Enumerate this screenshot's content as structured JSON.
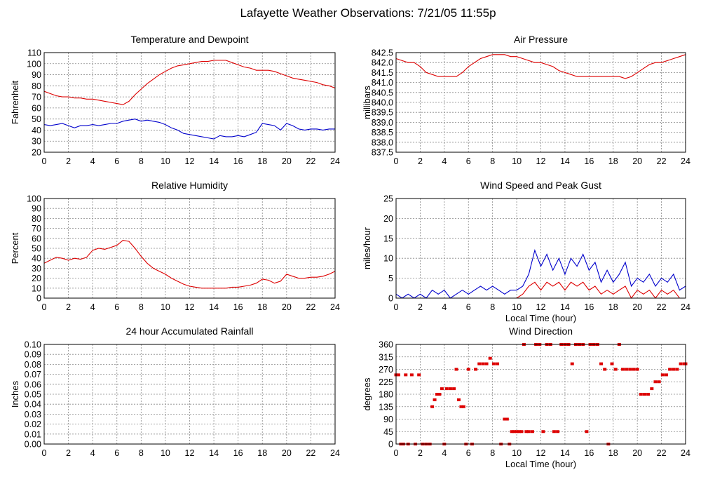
{
  "page_title": "Lafayette Weather Observations: 7/21/05 11:55p",
  "colors": {
    "red_series": "#dd0000",
    "blue_series": "#0000cc",
    "grid": "#888888",
    "frame": "#000000"
  },
  "chart_data": [
    {
      "id": "temp",
      "type": "line",
      "title": "Temperature and Dewpoint",
      "xlabel": "",
      "ylabel": "Fahrenheit",
      "xlim": [
        0,
        24
      ],
      "ylim": [
        20,
        110
      ],
      "xticks": [
        0,
        2,
        4,
        6,
        8,
        10,
        12,
        14,
        16,
        18,
        20,
        22,
        24
      ],
      "yticks": [
        20,
        30,
        40,
        50,
        60,
        70,
        80,
        90,
        100,
        110
      ],
      "grid": true,
      "series": [
        {
          "color": "#dd0000",
          "x": [
            0,
            0.5,
            1,
            1.5,
            2,
            2.5,
            3,
            3.5,
            4,
            4.5,
            5,
            5.5,
            6,
            6.5,
            7,
            7.5,
            8,
            8.5,
            9,
            9.5,
            10,
            10.5,
            11,
            11.5,
            12,
            12.5,
            13,
            13.5,
            14,
            14.5,
            15,
            15.5,
            16,
            16.5,
            17,
            17.5,
            18,
            18.5,
            19,
            19.5,
            20,
            20.5,
            21,
            21.5,
            22,
            22.5,
            23,
            23.5,
            24
          ],
          "y": [
            75,
            73,
            71,
            70,
            70,
            69,
            69,
            68,
            68,
            67,
            66,
            65,
            64,
            63,
            66,
            72,
            77,
            82,
            86,
            90,
            93,
            96,
            98,
            99,
            100,
            101,
            102,
            102,
            103,
            103,
            103,
            101,
            99,
            97,
            96,
            94,
            94,
            94,
            93,
            91,
            89,
            87,
            86,
            85,
            84,
            83,
            81,
            80,
            78
          ]
        },
        {
          "color": "#0000cc",
          "x": [
            0,
            0.5,
            1,
            1.5,
            2,
            2.5,
            3,
            3.5,
            4,
            4.5,
            5,
            5.5,
            6,
            6.5,
            7,
            7.5,
            8,
            8.5,
            9,
            9.5,
            10,
            10.5,
            11,
            11.5,
            12,
            12.5,
            13,
            13.5,
            14,
            14.5,
            15,
            15.5,
            16,
            16.5,
            17,
            17.5,
            18,
            18.5,
            19,
            19.5,
            20,
            20.5,
            21,
            21.5,
            22,
            22.5,
            23,
            23.5,
            24
          ],
          "y": [
            45,
            44,
            45,
            46,
            44,
            42,
            44,
            44,
            45,
            44,
            45,
            46,
            46,
            48,
            49,
            50,
            48,
            49,
            48,
            47,
            45,
            42,
            40,
            37,
            36,
            35,
            34,
            33,
            32,
            35,
            34,
            34,
            35,
            34,
            36,
            38,
            46,
            45,
            44,
            40,
            46,
            44,
            41,
            40,
            41,
            41,
            40,
            41,
            41
          ]
        }
      ]
    },
    {
      "id": "pressure",
      "type": "line",
      "title": "Air Pressure",
      "xlabel": "",
      "ylabel": "millibars",
      "xlim": [
        0,
        24
      ],
      "ylim": [
        837.5,
        842.5
      ],
      "xticks": [
        0,
        2,
        4,
        6,
        8,
        10,
        12,
        14,
        16,
        18,
        20,
        22,
        24
      ],
      "yticks": [
        "837.5",
        "838.0",
        "838.5",
        "839.0",
        "839.5",
        "840.0",
        "840.5",
        "841.0",
        "841.5",
        "842.0",
        "842.5"
      ],
      "grid": true,
      "series": [
        {
          "color": "#dd0000",
          "x": [
            0,
            0.5,
            1,
            1.5,
            2,
            2.5,
            3,
            3.5,
            4,
            4.5,
            5,
            5.5,
            6,
            6.5,
            7,
            7.5,
            8,
            8.5,
            9,
            9.5,
            10,
            10.5,
            11,
            11.5,
            12,
            12.5,
            13,
            13.5,
            14,
            14.5,
            15,
            15.5,
            16,
            16.5,
            17,
            17.5,
            18,
            18.5,
            19,
            19.5,
            20,
            20.5,
            21,
            21.5,
            22,
            22.5,
            23,
            23.5,
            24
          ],
          "y": [
            842.2,
            842.1,
            842.0,
            842.0,
            841.8,
            841.5,
            841.4,
            841.3,
            841.3,
            841.3,
            841.3,
            841.5,
            841.8,
            842.0,
            842.2,
            842.3,
            842.4,
            842.4,
            842.4,
            842.3,
            842.3,
            842.2,
            842.1,
            842.0,
            842.0,
            841.9,
            841.8,
            841.6,
            841.5,
            841.4,
            841.3,
            841.3,
            841.3,
            841.3,
            841.3,
            841.3,
            841.3,
            841.3,
            841.2,
            841.3,
            841.5,
            841.7,
            841.9,
            842.0,
            842.0,
            842.1,
            842.2,
            842.3,
            842.4
          ]
        }
      ]
    },
    {
      "id": "humidity",
      "type": "line",
      "title": "Relative Humidity",
      "xlabel": "",
      "ylabel": "Percent",
      "xlim": [
        0,
        24
      ],
      "ylim": [
        0,
        100
      ],
      "xticks": [
        0,
        2,
        4,
        6,
        8,
        10,
        12,
        14,
        16,
        18,
        20,
        22,
        24
      ],
      "yticks": [
        0,
        10,
        20,
        30,
        40,
        50,
        60,
        70,
        80,
        90,
        100
      ],
      "grid": true,
      "series": [
        {
          "color": "#dd0000",
          "x": [
            0,
            0.5,
            1,
            1.5,
            2,
            2.5,
            3,
            3.5,
            4,
            4.5,
            5,
            5.5,
            6,
            6.5,
            7,
            7.5,
            8,
            8.5,
            9,
            9.5,
            10,
            10.5,
            11,
            11.5,
            12,
            12.5,
            13,
            13.5,
            14,
            14.5,
            15,
            15.5,
            16,
            16.5,
            17,
            17.5,
            18,
            18.5,
            19,
            19.5,
            20,
            20.5,
            21,
            21.5,
            22,
            22.5,
            23,
            23.5,
            24
          ],
          "y": [
            35,
            38,
            41,
            40,
            38,
            40,
            39,
            41,
            48,
            50,
            49,
            51,
            53,
            58,
            57,
            50,
            42,
            35,
            30,
            27,
            24,
            20,
            17,
            14,
            12,
            11,
            10,
            10,
            10,
            10,
            10,
            11,
            11,
            12,
            13,
            15,
            19,
            18,
            15,
            17,
            24,
            22,
            20,
            20,
            21,
            21,
            22,
            24,
            27
          ]
        }
      ]
    },
    {
      "id": "wind",
      "type": "line",
      "title": "Wind Speed and Peak Gust",
      "xlabel": "Local Time (hour)",
      "ylabel": "miles/hour",
      "xlim": [
        0,
        24
      ],
      "ylim": [
        0,
        25
      ],
      "xticks": [
        0,
        2,
        4,
        6,
        8,
        10,
        12,
        14,
        16,
        18,
        20,
        22,
        24
      ],
      "yticks": [
        0,
        5,
        10,
        15,
        20,
        25
      ],
      "grid": true,
      "series": [
        {
          "color": "#0000cc",
          "x": [
            0,
            0.5,
            1,
            1.5,
            2,
            2.5,
            3,
            3.5,
            4,
            4.5,
            5,
            5.5,
            6,
            6.5,
            7,
            7.5,
            8,
            8.5,
            9,
            9.5,
            10,
            10.5,
            11,
            11.5,
            12,
            12.5,
            13,
            13.5,
            14,
            14.5,
            15,
            15.5,
            16,
            16.5,
            17,
            17.5,
            18,
            18.5,
            19,
            19.5,
            20,
            20.5,
            21,
            21.5,
            22,
            22.5,
            23,
            23.5,
            24
          ],
          "y": [
            1,
            0,
            1,
            0,
            1,
            0,
            2,
            1,
            2,
            0,
            1,
            2,
            1,
            2,
            3,
            2,
            3,
            2,
            1,
            2,
            2,
            3,
            6,
            12,
            8,
            11,
            7,
            10,
            6,
            10,
            8,
            11,
            7,
            9,
            4,
            7,
            4,
            6,
            9,
            3,
            5,
            4,
            6,
            3,
            5,
            4,
            6,
            2,
            3
          ]
        },
        {
          "color": "#dd0000",
          "x": [
            0,
            0.5,
            1,
            1.5,
            2,
            2.5,
            3,
            3.5,
            4,
            4.5,
            5,
            5.5,
            6,
            6.5,
            7,
            7.5,
            8,
            8.5,
            9,
            9.5,
            10,
            10.5,
            11,
            11.5,
            12,
            12.5,
            13,
            13.5,
            14,
            14.5,
            15,
            15.5,
            16,
            16.5,
            17,
            17.5,
            18,
            18.5,
            19,
            19.5,
            20,
            20.5,
            21,
            21.5,
            22,
            22.5,
            23,
            23.5,
            24
          ],
          "y": [
            0,
            0,
            0,
            0,
            0,
            0,
            0,
            0,
            0,
            0,
            0,
            0,
            0,
            0,
            0,
            0,
            0,
            0,
            0,
            0,
            0,
            1,
            3,
            4,
            2,
            4,
            3,
            4,
            2,
            4,
            3,
            4,
            2,
            3,
            1,
            2,
            1,
            2,
            3,
            0,
            2,
            1,
            2,
            0,
            2,
            1,
            2,
            0,
            0
          ]
        }
      ]
    },
    {
      "id": "rain",
      "type": "line",
      "title": "24 hour Accumulated Rainfall",
      "xlabel": "",
      "ylabel": "Inches",
      "xlim": [
        0,
        24
      ],
      "ylim": [
        0,
        0.1
      ],
      "xticks": [
        0,
        2,
        4,
        6,
        8,
        10,
        12,
        14,
        16,
        18,
        20,
        22,
        24
      ],
      "yticks": [
        "0.00",
        "0.01",
        "0.02",
        "0.03",
        "0.04",
        "0.05",
        "0.06",
        "0.07",
        "0.08",
        "0.09",
        "0.10"
      ],
      "grid": true,
      "series": [
        {
          "color": "#dd0000",
          "x": [
            0,
            24
          ],
          "y": [
            0,
            0
          ]
        }
      ]
    },
    {
      "id": "direction",
      "type": "scatter",
      "title": "Wind Direction",
      "xlabel": "Local Time (hour)",
      "ylabel": "degrees",
      "xlim": [
        0,
        24
      ],
      "ylim": [
        0,
        360
      ],
      "xticks": [
        0,
        2,
        4,
        6,
        8,
        10,
        12,
        14,
        16,
        18,
        20,
        22,
        24
      ],
      "yticks": [
        0,
        45,
        90,
        135,
        180,
        225,
        270,
        315,
        360
      ],
      "grid": true,
      "series": [
        {
          "color": "#dd0000",
          "x": [
            0,
            0.2,
            0.4,
            0.6,
            0.8,
            1.0,
            1.3,
            1.6,
            1.9,
            2.2,
            2.5,
            2.8,
            3.0,
            3.2,
            3.4,
            3.6,
            3.8,
            4.0,
            4.2,
            4.5,
            4.8,
            5.0,
            5.2,
            5.4,
            5.6,
            5.8,
            6.0,
            6.3,
            6.6,
            6.9,
            7.2,
            7.5,
            7.8,
            8.1,
            8.4,
            8.7,
            9.0,
            9.2,
            9.4,
            9.6,
            9.8,
            10.0,
            10.2,
            10.4,
            10.6,
            10.8,
            11.0,
            11.3,
            11.6,
            11.9,
            12.2,
            12.5,
            12.8,
            13.1,
            13.4,
            13.7,
            14.0,
            14.3,
            14.6,
            14.9,
            15.2,
            15.5,
            15.8,
            16.1,
            16.4,
            16.7,
            17.0,
            17.3,
            17.6,
            17.9,
            18.2,
            18.5,
            18.8,
            19.1,
            19.4,
            19.7,
            20.0,
            20.3,
            20.6,
            20.9,
            21.2,
            21.5,
            21.8,
            22.1,
            22.4,
            22.7,
            23.0,
            23.3,
            23.6,
            23.9,
            24.0
          ],
          "y": [
            250,
            250,
            0,
            0,
            250,
            0,
            250,
            0,
            250,
            0,
            0,
            0,
            135,
            160,
            180,
            180,
            200,
            0,
            200,
            200,
            200,
            270,
            160,
            135,
            135,
            0,
            270,
            0,
            270,
            290,
            290,
            290,
            310,
            290,
            290,
            0,
            90,
            90,
            0,
            45,
            45,
            45,
            45,
            45,
            360,
            45,
            45,
            45,
            360,
            360,
            45,
            360,
            360,
            45,
            45,
            360,
            360,
            360,
            290,
            360,
            360,
            360,
            45,
            360,
            360,
            360,
            290,
            270,
            0,
            290,
            270,
            360,
            270,
            270,
            270,
            270,
            270,
            180,
            180,
            180,
            200,
            225,
            225,
            250,
            250,
            270,
            270,
            270,
            290,
            290,
            290
          ]
        }
      ]
    }
  ]
}
